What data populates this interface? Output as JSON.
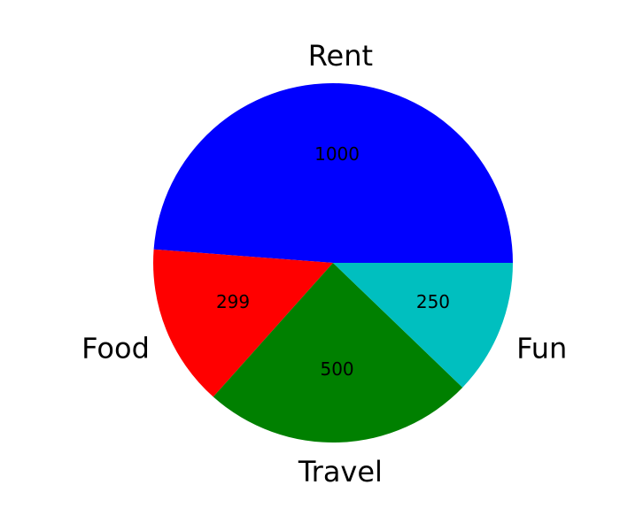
{
  "chart_data": {
    "type": "pie",
    "categories": [
      "Rent",
      "Food",
      "Travel",
      "Fun"
    ],
    "values": [
      1000,
      299,
      500,
      250
    ],
    "value_labels": [
      "1000",
      "299",
      "500",
      "250"
    ],
    "colors": [
      "#0000ff",
      "#ff0000",
      "#008000",
      "#00bfbf"
    ],
    "start_angle_deg": 0,
    "direction": "counterclockwise",
    "legend": "none",
    "title": ""
  }
}
